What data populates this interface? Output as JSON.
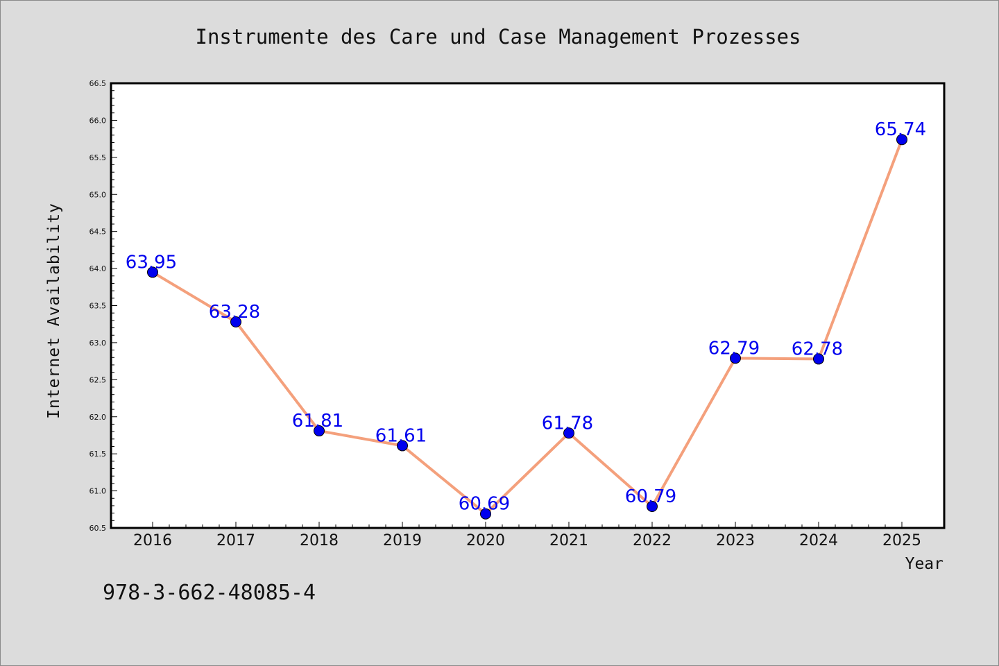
{
  "chart_data": {
    "type": "line",
    "title": "Instrumente des Care und Case Management Prozesses",
    "xlabel": "Year",
    "ylabel": "Internet Availability",
    "categories": [
      "2016",
      "2017",
      "2018",
      "2019",
      "2020",
      "2021",
      "2022",
      "2023",
      "2024",
      "2025"
    ],
    "series": [
      {
        "values": [
          63.95,
          63.28,
          61.81,
          61.61,
          60.69,
          61.78,
          60.79,
          62.79,
          62.78,
          65.74
        ]
      }
    ],
    "data_labels": [
      "63.95",
      "63.28",
      "61.81",
      "61.61",
      "60.69",
      "61.78",
      "60.79",
      "62.79",
      "62.78",
      "65.74"
    ],
    "ylim": [
      60.5,
      66.5
    ],
    "yticks": [
      "60.5",
      "61.0",
      "61.5",
      "62.0",
      "62.5",
      "63.0",
      "63.5",
      "64.0",
      "64.5",
      "65.0",
      "65.5",
      "66.0",
      "66.5"
    ],
    "grid": false,
    "colors": {
      "line": "#f4a07c",
      "marker": "#0000ee",
      "label": "#0000ee",
      "background": "#dcdcdc",
      "plot_bg": "#ffffff"
    }
  },
  "footer": {
    "isbn": "978-3-662-48085-4"
  }
}
